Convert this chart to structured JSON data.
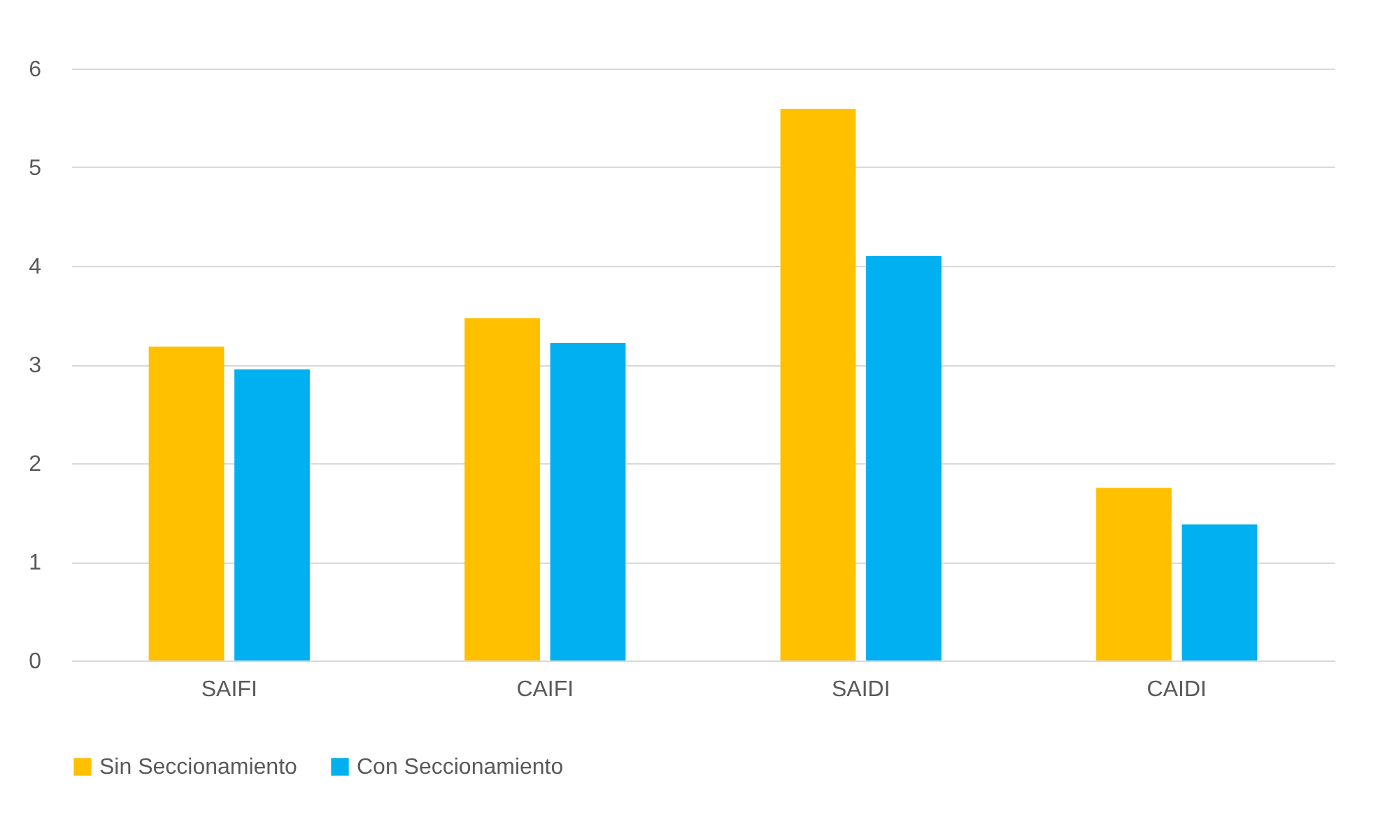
{
  "chart_data": {
    "type": "bar",
    "categories": [
      "SAIFI",
      "CAIFI",
      "SAIDI",
      "CAIDI"
    ],
    "series": [
      {
        "name": "Sin Seccionamiento",
        "color": "#ffc000",
        "values": [
          3.18,
          3.47,
          5.59,
          1.75
        ]
      },
      {
        "name": "Con Seccionamiento",
        "color": "#00b0f0",
        "values": [
          2.95,
          3.22,
          4.1,
          1.38
        ]
      }
    ],
    "ylim": [
      0,
      6
    ],
    "yticks": [
      0,
      1,
      2,
      3,
      4,
      5,
      6
    ],
    "grid": "y",
    "legend": "bottom"
  }
}
